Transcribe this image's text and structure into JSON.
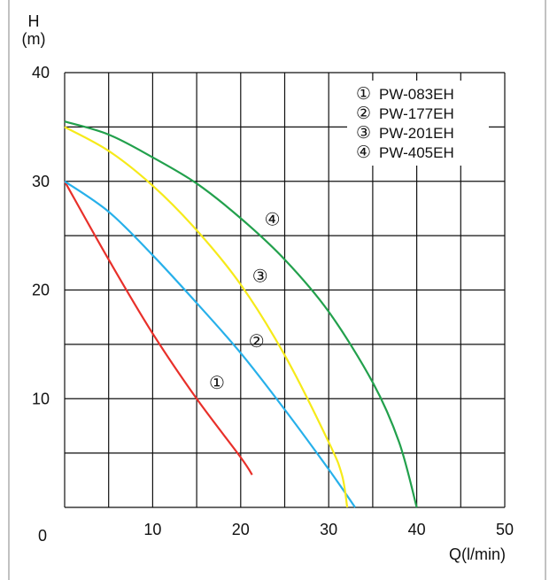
{
  "chart_data": {
    "type": "line",
    "ylabel_line1": "H",
    "ylabel_line2": "(m)",
    "xlabel": "Q(l/min)",
    "x_tick_labels": [
      "0",
      "10",
      "20",
      "30",
      "40",
      "50"
    ],
    "y_tick_labels": [
      "10",
      "20",
      "30",
      "40"
    ],
    "xlim": [
      0,
      50
    ],
    "ylim": [
      0,
      40
    ],
    "grid": true,
    "legend_position": "top-right",
    "series": [
      {
        "marker": "①",
        "name": "PW-083EH",
        "color": "#e8302a",
        "x": [
          0,
          5,
          10,
          15,
          20,
          21.3
        ],
        "y": [
          30,
          22.8,
          16,
          10,
          4.6,
          3
        ]
      },
      {
        "marker": "②",
        "name": "PW-177EH",
        "color": "#27b0ea",
        "x": [
          0,
          5,
          10,
          15,
          20,
          25,
          30,
          33
        ],
        "y": [
          30,
          27.2,
          23.2,
          18.8,
          14.2,
          9,
          3.5,
          0
        ]
      },
      {
        "marker": "③",
        "name": "PW-201EH",
        "color": "#f6ea1a",
        "x": [
          0,
          5,
          10,
          15,
          20,
          25,
          30,
          31.5,
          32.1
        ],
        "y": [
          35,
          32.8,
          29.6,
          25.5,
          20.5,
          14,
          6,
          3,
          0
        ]
      },
      {
        "marker": "④",
        "name": "PW-405EH",
        "color": "#22a04c",
        "x": [
          0,
          5,
          10,
          15,
          20,
          25,
          30,
          35,
          38,
          40
        ],
        "y": [
          35.5,
          34.3,
          32.2,
          29.8,
          26.6,
          22.8,
          18,
          11.5,
          6,
          0
        ]
      }
    ],
    "curve_labels": [
      {
        "text": "①",
        "series": "PW-083EH",
        "x": 17.3,
        "y": 11.5
      },
      {
        "text": "②",
        "series": "PW-177EH",
        "x": 21.8,
        "y": 15.3
      },
      {
        "text": "③",
        "series": "PW-201EH",
        "x": 22.2,
        "y": 21.3
      },
      {
        "text": "④",
        "series": "PW-405EH",
        "x": 23.6,
        "y": 26.5
      }
    ]
  }
}
